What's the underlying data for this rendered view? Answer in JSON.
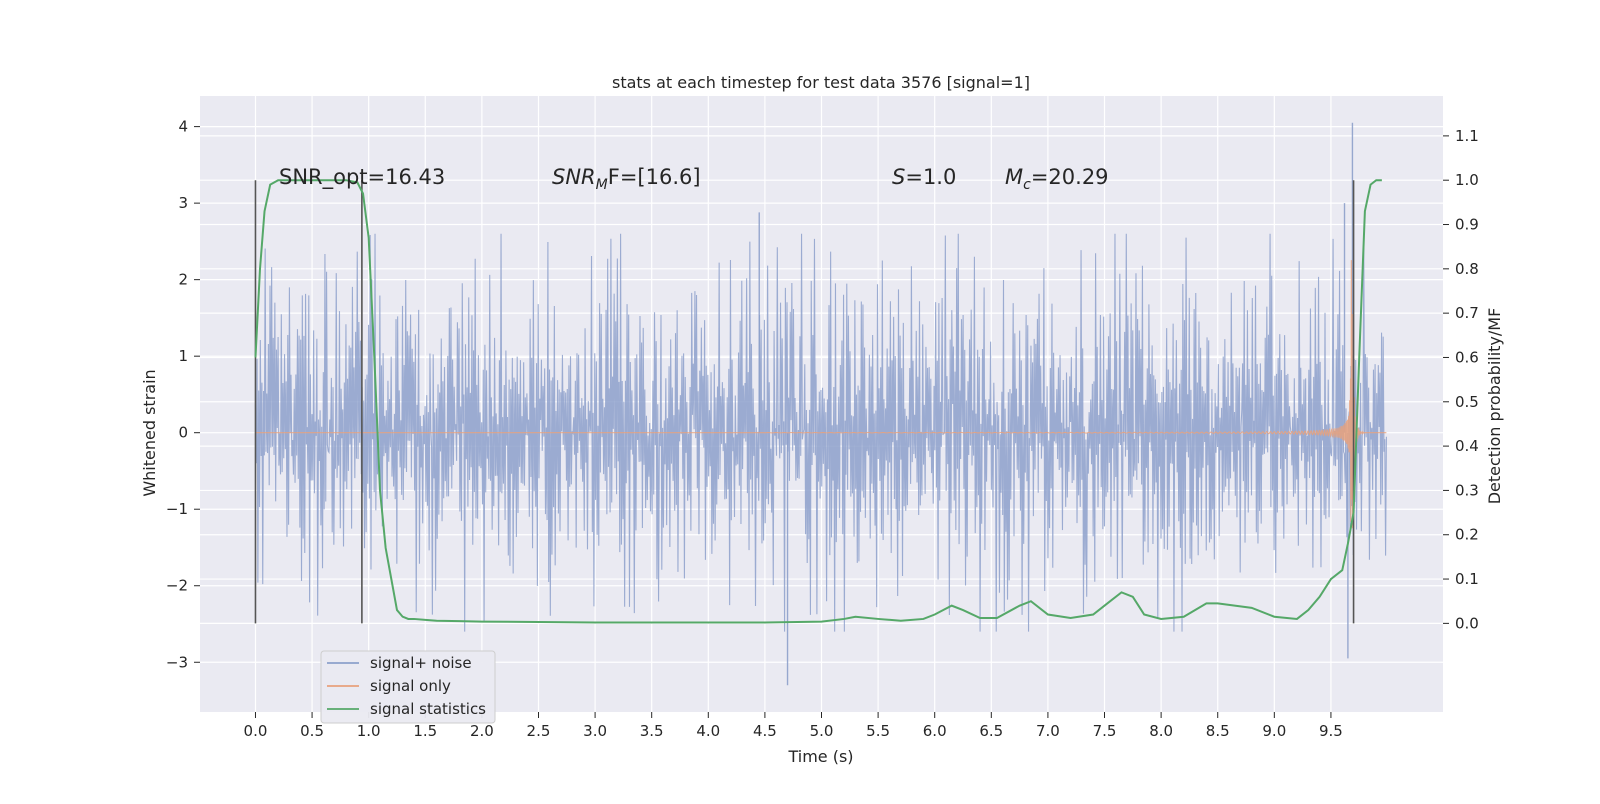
{
  "chart_data": {
    "type": "line",
    "title": "stats at each timestep for test data 3576 [signal=1]",
    "xlabel": "Time (s)",
    "ylabel": "Whitened strain",
    "ylabel_right": "Detection probability/MF",
    "xlim": [
      -0.49,
      10.49
    ],
    "ylim": [
      -3.65,
      4.4
    ],
    "ylim_right": [
      -0.2,
      1.19
    ],
    "xticks": [
      "0.0",
      "0.5",
      "1.0",
      "1.5",
      "2.0",
      "2.5",
      "3.0",
      "3.5",
      "4.0",
      "4.5",
      "5.0",
      "5.5",
      "6.0",
      "6.5",
      "7.0",
      "7.5",
      "8.0",
      "8.5",
      "9.0",
      "9.5"
    ],
    "yticks": [
      "4",
      "3",
      "2",
      "1",
      "0",
      "−1",
      "−2",
      "−3"
    ],
    "yticks_right": [
      "1.1",
      "1.0",
      "0.9",
      "0.8",
      "0.7",
      "0.6",
      "0.5",
      "0.4",
      "0.3",
      "0.2",
      "0.1",
      "0.0"
    ],
    "grid": true,
    "legend_position": "lower-left",
    "annotations": {
      "snr_opt": "SNR_opt=16.43",
      "snr_mf_base": "SNR",
      "snr_mf_sub": "M",
      "snr_mf_rest": "F=[16.6]",
      "s_var": "S",
      "s_value": "=1.0",
      "mc_base": "M",
      "mc_sub": "c",
      "mc_value": "=20.29"
    },
    "series": [
      {
        "name": "signal+ noise",
        "color": "#8da0cb",
        "kind": "noise",
        "x_range": [
          0.0,
          9.99
        ],
        "typical_amplitude": 1.5,
        "peak_high": 4.05,
        "peak_low": -3.3
      },
      {
        "name": "signal only",
        "color": "#e8a17c",
        "kind": "chirp",
        "x_range": [
          0.0,
          9.99
        ],
        "merger_time": 9.68,
        "peak_amplitude": 2.6,
        "amplitude_at_5s": 0.02,
        "amplitude_at_9s": 0.15
      },
      {
        "name": "signal statistics",
        "color": "#55a868",
        "kind": "probability",
        "axis": "right",
        "x": [
          0.0,
          0.04,
          0.08,
          0.13,
          0.2,
          0.3,
          0.5,
          0.7,
          0.8,
          0.9,
          0.95,
          1.0,
          1.05,
          1.1,
          1.15,
          1.2,
          1.25,
          1.3,
          1.35,
          1.4,
          1.5,
          1.6,
          1.8,
          2.0,
          2.5,
          3.0,
          3.5,
          4.0,
          4.5,
          5.0,
          5.2,
          5.3,
          5.5,
          5.7,
          5.9,
          6.0,
          6.15,
          6.25,
          6.4,
          6.55,
          6.75,
          6.85,
          7.0,
          7.2,
          7.4,
          7.55,
          7.65,
          7.75,
          7.85,
          8.0,
          8.2,
          8.4,
          8.5,
          8.8,
          9.0,
          9.2,
          9.3,
          9.4,
          9.5,
          9.6,
          9.65,
          9.7,
          9.75,
          9.8,
          9.85,
          9.9,
          9.95
        ],
        "y": [
          0.6,
          0.8,
          0.93,
          0.99,
          1.0,
          1.0,
          1.0,
          1.0,
          1.0,
          0.995,
          0.97,
          0.87,
          0.6,
          0.3,
          0.17,
          0.1,
          0.03,
          0.015,
          0.01,
          0.01,
          0.008,
          0.006,
          0.005,
          0.004,
          0.003,
          0.002,
          0.002,
          0.002,
          0.002,
          0.004,
          0.01,
          0.015,
          0.01,
          0.006,
          0.01,
          0.02,
          0.04,
          0.03,
          0.012,
          0.012,
          0.04,
          0.05,
          0.02,
          0.012,
          0.02,
          0.05,
          0.07,
          0.06,
          0.02,
          0.01,
          0.015,
          0.045,
          0.045,
          0.035,
          0.015,
          0.01,
          0.03,
          0.06,
          0.1,
          0.12,
          0.18,
          0.25,
          0.6,
          0.93,
          0.99,
          1.0,
          1.0
        ]
      }
    ],
    "vertical_lines": [
      {
        "x": 0.0,
        "y_right": [
          0.0,
          1.0
        ]
      },
      {
        "x": 0.94,
        "y_right": [
          0.0,
          1.0
        ]
      },
      {
        "x": 9.7,
        "y_right": [
          0.0,
          1.0
        ]
      }
    ]
  }
}
